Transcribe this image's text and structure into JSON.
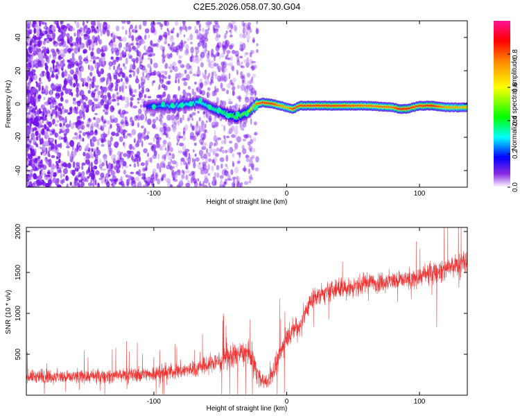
{
  "title": "C2E5.2026.058.07.30.G04",
  "chart_data": [
    {
      "type": "heatmap",
      "xlabel": "Height of straight line (km)",
      "ylabel": "Frequency (Hz)",
      "xlim": [
        -196,
        136
      ],
      "ylim": [
        -50,
        50
      ],
      "xticks": [
        -100,
        0,
        100
      ],
      "yticks": [
        -40,
        -20,
        0,
        20,
        40
      ],
      "colorbar": {
        "label": "Normalized spectral amplitude",
        "range": [
          0.0,
          1.0
        ],
        "ticks": [
          0.0,
          0.2,
          0.4,
          0.6,
          0.8
        ],
        "tick_labels": [
          "0.0",
          "0.2",
          "0.4",
          "0.6",
          "0.8"
        ]
      },
      "noise_region_x": [
        -196,
        -22
      ],
      "signal_track": {
        "x": [
          -105,
          -95,
          -85,
          -75,
          -65,
          -55,
          -45,
          -38,
          -30,
          -22,
          -18,
          -10,
          0,
          5,
          10,
          20,
          40,
          60,
          80,
          85,
          90,
          95,
          100,
          110,
          120,
          136
        ],
        "frequency_hz": [
          -2,
          -1,
          -1,
          0,
          1,
          -3,
          -6,
          -8,
          -5,
          0,
          1,
          0,
          -2,
          -3,
          -1,
          -1,
          -1,
          -1,
          -2,
          -3,
          -3,
          -2,
          -1,
          -1,
          -2,
          -2
        ],
        "amplitude": [
          0.2,
          0.25,
          0.3,
          0.3,
          0.3,
          0.35,
          0.4,
          0.45,
          0.5,
          0.8,
          0.85,
          0.85,
          0.7,
          0.85,
          0.85,
          0.85,
          0.85,
          0.8,
          0.8,
          0.9,
          0.9,
          0.85,
          0.85,
          0.9,
          0.75,
          0.7
        ]
      }
    },
    {
      "type": "line",
      "xlabel": "Height of straight line (km)",
      "ylabel": "SNR (10 * v/v)",
      "xlim": [
        -196,
        136
      ],
      "ylim": [
        0,
        2050
      ],
      "xticks": [
        -100,
        0,
        100
      ],
      "yticks": [
        500,
        1000,
        1500,
        2000
      ],
      "series": [
        {
          "name": "SNR",
          "color": "#ee3333",
          "x": [
            -196,
            -170,
            -140,
            -110,
            -90,
            -70,
            -55,
            -40,
            -30,
            -25,
            -20,
            -15,
            -10,
            -5,
            0,
            5,
            10,
            15,
            20,
            30,
            40,
            50,
            60,
            70,
            80,
            90,
            95,
            100,
            110,
            120,
            136
          ],
          "y": [
            230,
            225,
            230,
            250,
            280,
            320,
            400,
            480,
            520,
            400,
            200,
            150,
            280,
            500,
            700,
            800,
            850,
            1050,
            1200,
            1250,
            1300,
            1320,
            1370,
            1380,
            1400,
            1420,
            1400,
            1450,
            1500,
            1540,
            1620
          ],
          "spread": [
            140,
            140,
            140,
            150,
            160,
            170,
            200,
            250,
            250,
            300,
            150,
            150,
            200,
            250,
            250,
            250,
            250,
            250,
            200,
            200,
            200,
            200,
            200,
            200,
            200,
            200,
            200,
            200,
            220,
            230,
            250
          ]
        }
      ]
    }
  ]
}
